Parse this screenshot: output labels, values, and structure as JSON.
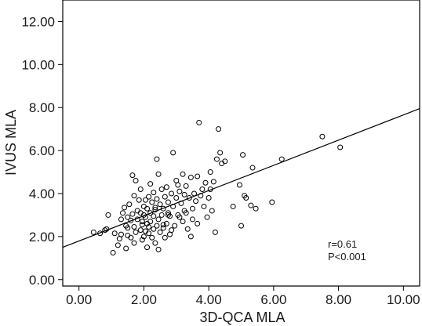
{
  "chart_data": {
    "type": "scatter",
    "xlabel": "3D-QCA MLA",
    "ylabel": "IVUS MLA",
    "xlim": [
      -0.5,
      10.5
    ],
    "ylim": [
      -0.3,
      13.0
    ],
    "xticks": [
      "0.00",
      "2.00",
      "4.00",
      "6.00",
      "8.00",
      "10.00"
    ],
    "xtick_values": [
      0,
      2,
      4,
      6,
      8,
      10
    ],
    "yticks": [
      "0.00",
      "2.00",
      "4.00",
      "6.00",
      "8.00",
      "10.00",
      "12.00"
    ],
    "ytick_values": [
      0,
      2,
      4,
      6,
      8,
      10,
      12
    ],
    "grid": false,
    "fit_line": {
      "x": [
        -0.5,
        10.5
      ],
      "y": [
        1.5,
        7.95
      ]
    },
    "annotations": [
      "r=0.61",
      "P<0.001"
    ],
    "points": [
      [
        0.45,
        2.2
      ],
      [
        0.65,
        2.15
      ],
      [
        0.8,
        2.3
      ],
      [
        0.85,
        2.35
      ],
      [
        0.9,
        3.0
      ],
      [
        1.05,
        1.25
      ],
      [
        1.1,
        2.15
      ],
      [
        1.2,
        1.6
      ],
      [
        1.25,
        1.9
      ],
      [
        1.3,
        2.1
      ],
      [
        1.3,
        2.8
      ],
      [
        1.35,
        3.1
      ],
      [
        1.4,
        3.35
      ],
      [
        1.45,
        1.45
      ],
      [
        1.45,
        2.5
      ],
      [
        1.5,
        2.05
      ],
      [
        1.5,
        2.9
      ],
      [
        1.55,
        3.5
      ],
      [
        1.6,
        1.95
      ],
      [
        1.6,
        2.75
      ],
      [
        1.65,
        3.05
      ],
      [
        1.65,
        4.85
      ],
      [
        1.7,
        2.45
      ],
      [
        1.7,
        3.9
      ],
      [
        1.75,
        2.2
      ],
      [
        1.75,
        4.6
      ],
      [
        1.8,
        2.8
      ],
      [
        1.85,
        3.7
      ],
      [
        1.9,
        2.3
      ],
      [
        1.9,
        3.1
      ],
      [
        1.9,
        4.2
      ],
      [
        1.95,
        1.85
      ],
      [
        1.95,
        2.55
      ],
      [
        2.0,
        2.0
      ],
      [
        2.0,
        3.0
      ],
      [
        2.0,
        3.4
      ],
      [
        2.05,
        2.25
      ],
      [
        2.05,
        2.9
      ],
      [
        2.1,
        1.5
      ],
      [
        2.1,
        2.6
      ],
      [
        2.1,
        3.3
      ],
      [
        2.15,
        2.15
      ],
      [
        2.15,
        3.85
      ],
      [
        2.2,
        2.7
      ],
      [
        2.2,
        3.1
      ],
      [
        2.2,
        4.45
      ],
      [
        2.25,
        1.95
      ],
      [
        2.25,
        3.6
      ],
      [
        2.3,
        2.35
      ],
      [
        2.3,
        2.95
      ],
      [
        2.3,
        4.05
      ],
      [
        2.35,
        1.7
      ],
      [
        2.35,
        3.25
      ],
      [
        2.4,
        2.5
      ],
      [
        2.4,
        3.75
      ],
      [
        2.4,
        5.6
      ],
      [
        2.45,
        1.4
      ],
      [
        2.45,
        2.8
      ],
      [
        2.45,
        4.9
      ],
      [
        2.5,
        2.2
      ],
      [
        2.5,
        3.5
      ],
      [
        2.55,
        3.0
      ],
      [
        2.55,
        4.2
      ],
      [
        2.6,
        2.4
      ],
      [
        2.6,
        3.3
      ],
      [
        2.65,
        1.95
      ],
      [
        2.65,
        3.85
      ],
      [
        2.7,
        2.6
      ],
      [
        2.7,
        4.3
      ],
      [
        2.75,
        3.1
      ],
      [
        2.75,
        3.6
      ],
      [
        2.8,
        2.1
      ],
      [
        2.8,
        2.95
      ],
      [
        2.85,
        4.0
      ],
      [
        2.9,
        3.4
      ],
      [
        2.9,
        5.9
      ],
      [
        2.95,
        2.5
      ],
      [
        3.0,
        3.8
      ],
      [
        3.0,
        4.6
      ],
      [
        3.05,
        3.0
      ],
      [
        3.1,
        2.9
      ],
      [
        3.1,
        4.1
      ],
      [
        3.15,
        3.55
      ],
      [
        3.2,
        2.7
      ],
      [
        3.2,
        4.9
      ],
      [
        3.25,
        3.2
      ],
      [
        3.3,
        4.35
      ],
      [
        3.35,
        2.35
      ],
      [
        3.4,
        3.8
      ],
      [
        3.45,
        2.0
      ],
      [
        3.45,
        4.75
      ],
      [
        3.5,
        3.3
      ],
      [
        3.55,
        4.0
      ],
      [
        3.6,
        3.65
      ],
      [
        3.65,
        2.6
      ],
      [
        3.65,
        4.8
      ],
      [
        3.7,
        7.3
      ],
      [
        3.75,
        3.9
      ],
      [
        3.8,
        4.2
      ],
      [
        3.85,
        3.4
      ],
      [
        3.9,
        4.5
      ],
      [
        3.95,
        2.9
      ],
      [
        4.0,
        3.8
      ],
      [
        4.05,
        5.0
      ],
      [
        4.1,
        3.2
      ],
      [
        4.15,
        4.55
      ],
      [
        4.2,
        2.2
      ],
      [
        4.25,
        5.6
      ],
      [
        4.3,
        7.0
      ],
      [
        4.35,
        5.9
      ],
      [
        4.4,
        5.4
      ],
      [
        4.5,
        5.5
      ],
      [
        4.75,
        3.4
      ],
      [
        4.95,
        4.4
      ],
      [
        5.05,
        5.8
      ],
      [
        5.1,
        3.9
      ],
      [
        5.15,
        3.8
      ],
      [
        5.3,
        3.45
      ],
      [
        5.35,
        5.2
      ],
      [
        5.45,
        3.3
      ],
      [
        5.95,
        3.6
      ],
      [
        6.25,
        5.6
      ],
      [
        7.5,
        6.65
      ],
      [
        8.05,
        6.15
      ],
      [
        5.0,
        2.5
      ],
      [
        1.5,
        2.4
      ],
      [
        2.05,
        3.7
      ],
      [
        2.6,
        2.55
      ],
      [
        3.25,
        3.95
      ],
      [
        1.8,
        3.2
      ],
      [
        2.85,
        2.3
      ],
      [
        3.5,
        2.8
      ],
      [
        3.05,
        4.4
      ],
      [
        2.35,
        3.35
      ],
      [
        1.95,
        2.7
      ],
      [
        2.75,
        3.0
      ],
      [
        3.3,
        3.1
      ],
      [
        2.15,
        2.45
      ],
      [
        1.7,
        1.7
      ],
      [
        4.05,
        4.2
      ]
    ]
  }
}
